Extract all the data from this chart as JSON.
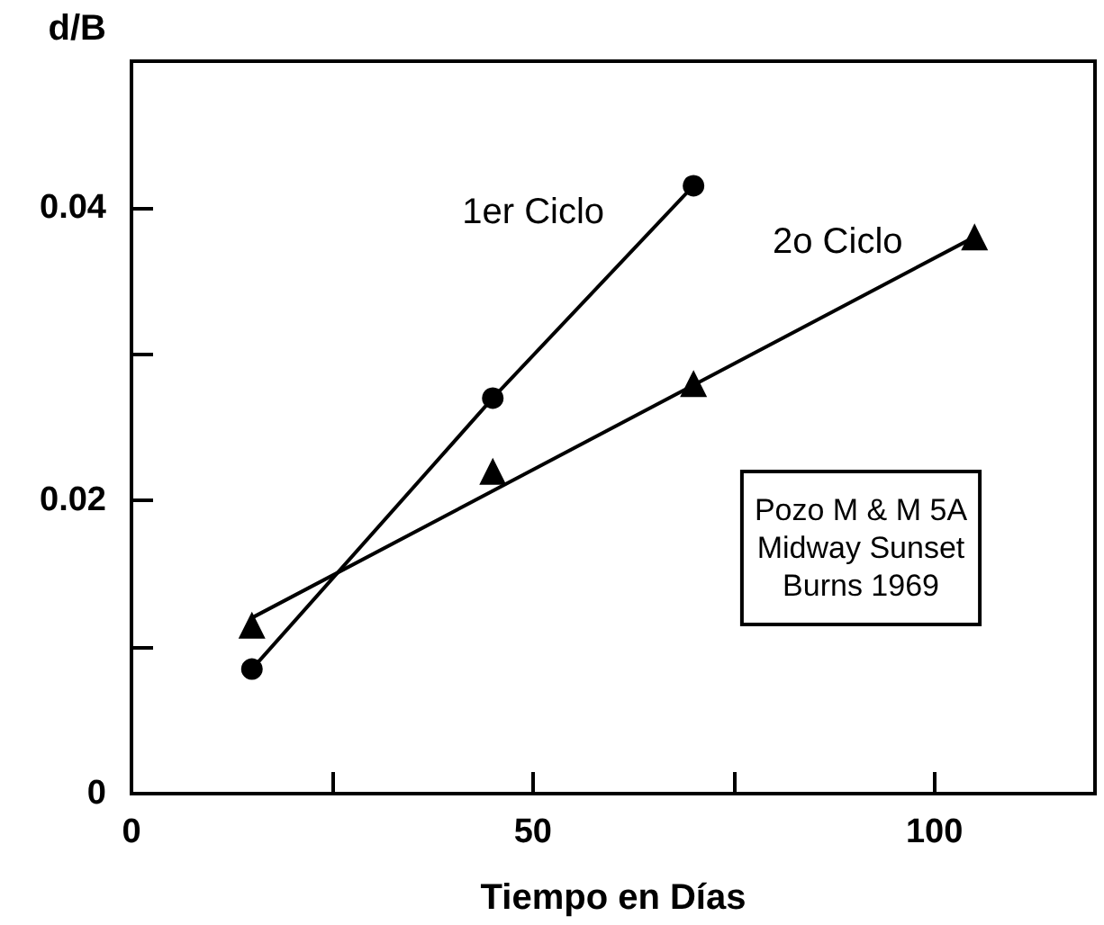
{
  "chart_data": {
    "type": "line",
    "xlabel": "Tiempo en Días",
    "ylabel": "d/B",
    "xlim": [
      0,
      120
    ],
    "ylim": [
      0,
      0.05
    ],
    "xticks": [
      0,
      {
        "value": 25,
        "label": null
      },
      50,
      {
        "value": 75,
        "label": null
      },
      100
    ],
    "yticks": [
      0,
      {
        "value": 0.01,
        "label": null
      },
      0.02,
      {
        "value": 0.03,
        "label": null
      },
      0.04
    ],
    "line_style": "solid",
    "series": [
      {
        "name": "1er Ciclo",
        "color": "#000000",
        "marker": "circle",
        "x": [
          15,
          45,
          70
        ],
        "values": [
          0.0085,
          0.027,
          0.0415
        ]
      },
      {
        "type": "scatter",
        "color": "#000000",
        "marker": "triangle",
        "x": [
          15,
          45,
          70,
          105
        ],
        "values": [
          0.0115,
          0.022,
          0.028,
          0.038
        ]
      },
      {
        "name": "2o Ciclo",
        "color": "#000000",
        "marker": "none",
        "x": [
          15,
          105
        ],
        "values": [
          0.012,
          0.038
        ]
      }
    ],
    "annotations": [
      "Pozo M & M 5A\nMidway Sunset\nBurns 1969"
    ]
  }
}
